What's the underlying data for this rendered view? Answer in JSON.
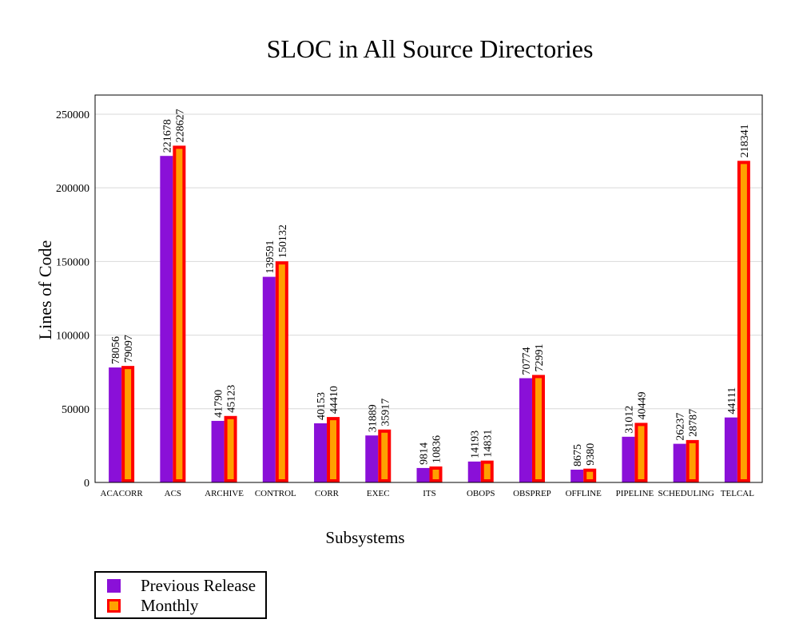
{
  "chart_data": {
    "type": "bar",
    "title": "SLOC in All Source Directories",
    "xlabel": "Subsystems",
    "ylabel": "Lines of Code",
    "ylim": [
      0,
      263000
    ],
    "yticks": [
      0,
      50000,
      100000,
      150000,
      200000,
      250000
    ],
    "grid": true,
    "categories": [
      "ACACORR",
      "ACS",
      "ARCHIVE",
      "CONTROL",
      "CORR",
      "EXEC",
      "ITS",
      "OBOPS",
      "OBSPREP",
      "OFFLINE",
      "PIPELINE",
      "SCHEDULING",
      "TELCAL"
    ],
    "series": [
      {
        "name": "Previous Release",
        "fill": "#8a10d8",
        "stroke": "#8a10d8",
        "values": [
          78056,
          221678,
          41790,
          139591,
          40153,
          31889,
          9814,
          14193,
          70774,
          8675,
          31012,
          26237,
          44111
        ]
      },
      {
        "name": "Monthly",
        "fill": "#ffa000",
        "stroke": "#ff0000",
        "values": [
          79097,
          228627,
          45123,
          150132,
          44410,
          35917,
          10836,
          14831,
          72991,
          9380,
          40449,
          28787,
          218341
        ]
      }
    ],
    "legend_position": "bottom-left"
  }
}
